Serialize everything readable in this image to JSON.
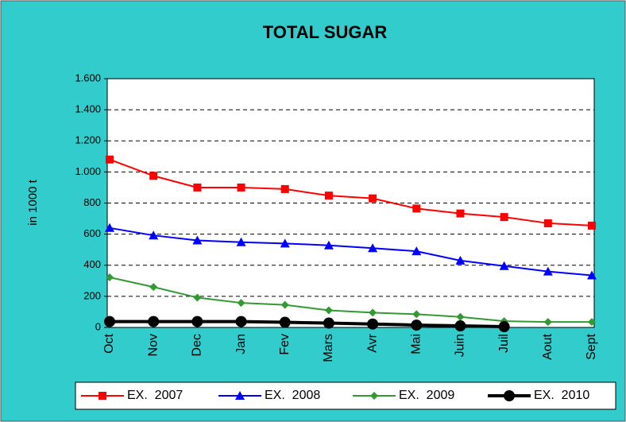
{
  "chart_data": {
    "type": "line",
    "title": "TOTAL SUGAR",
    "y_label": "in 1000 t",
    "categories": [
      "Oct",
      "Nov",
      "Dec",
      "Jan",
      "Fev",
      "Mars",
      "Avr",
      "Mai",
      "Juin",
      "Juil",
      "Aout",
      "Sept"
    ],
    "series": [
      {
        "name": "EX.  2007",
        "color": "#ff0000",
        "marker": "square",
        "values": [
          1080,
          975,
          900,
          900,
          890,
          848,
          830,
          765,
          733,
          710,
          670,
          655
        ]
      },
      {
        "name": "EX.  2008",
        "color": "#0000ff",
        "marker": "triangle",
        "values": [
          640,
          592,
          560,
          548,
          540,
          528,
          510,
          490,
          430,
          395,
          360,
          335
        ]
      },
      {
        "name": "EX.  2009",
        "color": "#339933",
        "marker": "diamond",
        "values": [
          322,
          260,
          192,
          158,
          145,
          110,
          95,
          85,
          68,
          40,
          35,
          35
        ]
      },
      {
        "name": "EX.  2010",
        "color": "#000000",
        "marker": "circle",
        "values": [
          38,
          38,
          38,
          38,
          33,
          28,
          22,
          15,
          10,
          5,
          null,
          null
        ]
      }
    ],
    "ylim": [
      0,
      1600
    ],
    "yticks": [
      0,
      200,
      400,
      600,
      800,
      {
        "value": 1000,
        "label": "1.000"
      },
      {
        "value": 1200,
        "label": "1.200"
      },
      {
        "value": 1400,
        "label": "1.400"
      },
      {
        "value": 1600,
        "label": "1.600"
      }
    ],
    "grid": true,
    "legend": "bottom"
  }
}
